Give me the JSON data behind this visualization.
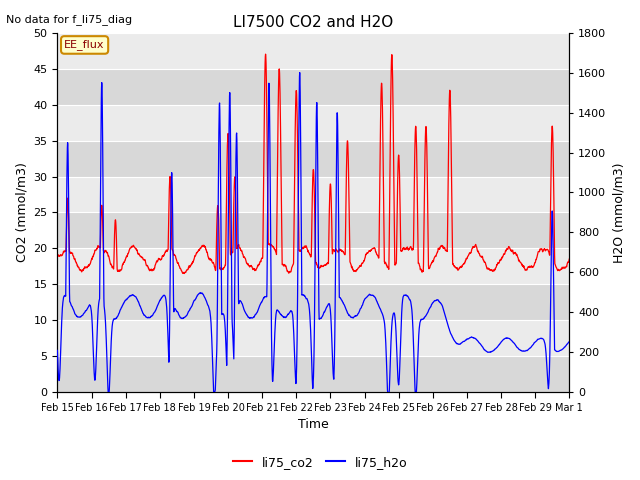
{
  "title": "LI7500 CO2 and H2O",
  "subtitle": "No data for f_li75_diag",
  "xlabel": "Time",
  "ylabel_left": "CO2 (mmol/m3)",
  "ylabel_right": "H2O (mmol/m3)",
  "ylim_left": [
    0,
    50
  ],
  "ylim_right": [
    0,
    1800
  ],
  "yticks_left": [
    0,
    5,
    10,
    15,
    20,
    25,
    30,
    35,
    40,
    45,
    50
  ],
  "yticks_right": [
    0,
    200,
    400,
    600,
    800,
    1000,
    1200,
    1400,
    1600,
    1800
  ],
  "legend_label_co2": "li75_co2",
  "legend_label_h2o": "li75_h2o",
  "color_co2": "#ff0000",
  "color_h2o": "#0000ff",
  "box_label": "EE_flux",
  "plot_bg_light": "#ebebeb",
  "plot_bg_dark": "#d8d8d8",
  "date_labels": [
    "Feb 15",
    "Feb 16",
    "Feb 17",
    "Feb 18",
    "Feb 19",
    "Feb 20",
    "Feb 21",
    "Feb 22",
    "Feb 23",
    "Feb 24",
    "Feb 25",
    "Feb 26",
    "Feb 27",
    "Feb 28",
    "Feb 29",
    "Mar 1"
  ],
  "n_days": 15,
  "figwidth": 6.4,
  "figheight": 4.8,
  "dpi": 100
}
